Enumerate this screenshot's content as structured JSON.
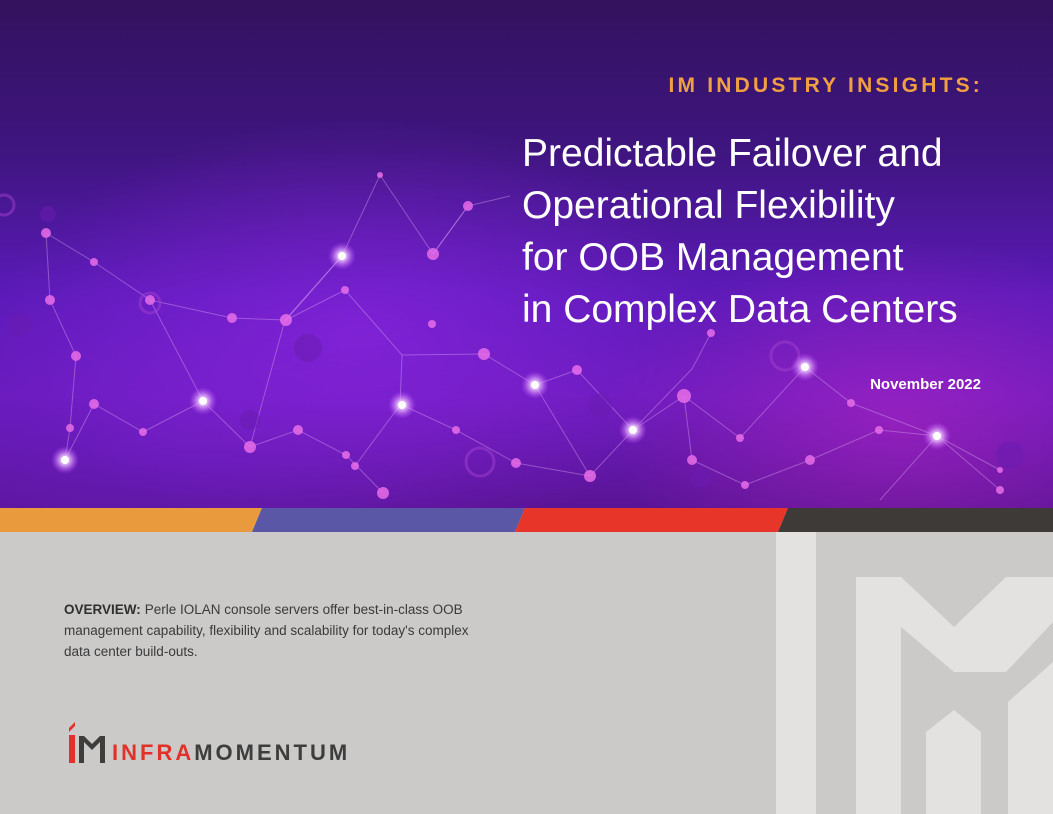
{
  "header": {
    "eyebrow": "IM INDUSTRY INSIGHTS:",
    "title_lines": [
      "Predictable Failover and",
      "Operational Flexibility",
      "for OOB Management",
      "in Complex Data Centers"
    ],
    "date": "November 2022"
  },
  "overview": {
    "label": "OVERVIEW:",
    "text": "Perle IOLAN console servers offer best-in-class OOB management capability, flexibility and scalability for today's complex data center build-outs."
  },
  "logo": {
    "infra": "INFRA",
    "momentum": "MOMENTUM"
  },
  "colors": {
    "accent_orange": "#f0a040",
    "stripe_orange": "#e89a3c",
    "stripe_blue": "#5a58a6",
    "stripe_red": "#e8352a",
    "stripe_dark": "#3e3a38",
    "brand_red": "#e2312a"
  }
}
